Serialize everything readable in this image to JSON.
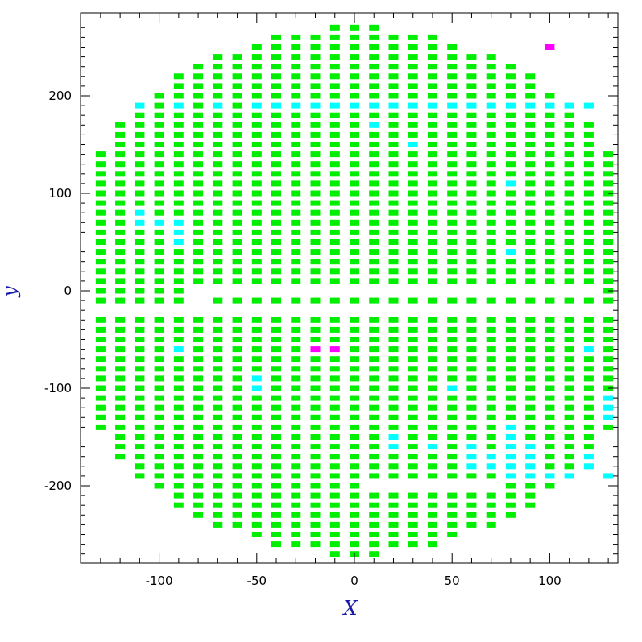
{
  "chart_data": {
    "type": "scatter",
    "title": "",
    "xlabel": "X",
    "ylabel": "y",
    "xlim": [
      -140,
      140
    ],
    "ylim": [
      -280,
      280
    ],
    "x_ticks": [
      -100,
      -50,
      0,
      50,
      100
    ],
    "y_ticks": [
      -200,
      -100,
      0,
      100,
      200
    ],
    "x_tick_labels": [
      "-100",
      "-50",
      "0",
      "50",
      "100"
    ],
    "y_tick_labels": [
      "-200",
      "-100",
      "0",
      "100",
      "200"
    ],
    "grid": false,
    "legend": "none",
    "marker": "rectangle",
    "cell_width": 6.2,
    "cell_height": 5.3,
    "grid_x": [
      -130,
      -120,
      -110,
      -100,
      -90,
      -80,
      -70,
      -60,
      -50,
      -40,
      -30,
      -20,
      -10,
      0,
      10,
      20,
      30,
      40,
      50,
      60,
      70,
      80,
      90,
      100,
      110,
      120,
      130
    ],
    "grid_y_top": [
      270,
      260,
      250,
      240,
      230,
      220,
      210,
      200,
      190,
      180,
      170,
      160,
      150,
      140,
      130,
      120,
      110,
      100,
      90,
      80,
      70,
      60,
      50,
      40,
      30,
      20,
      10,
      0,
      -10
    ],
    "grid_y_bottom": [
      -30,
      -40,
      -50,
      -60,
      -70,
      -80,
      -90,
      -100,
      -110,
      -120,
      -130,
      -140,
      -150,
      -160,
      -170,
      -180,
      -190,
      -200,
      -210,
      -220,
      -230,
      -240,
      -250,
      -260,
      -270
    ],
    "boundary_radius": 271,
    "x_half_width_limit": 131,
    "omitted_points": [
      [
        -80,
        -10
      ],
      [
        -80,
        0
      ],
      [
        -70,
        0
      ],
      [
        -60,
        0
      ],
      [
        -50,
        0
      ],
      [
        -40,
        0
      ],
      [
        -30,
        0
      ],
      [
        -20,
        0
      ],
      [
        -10,
        0
      ],
      [
        0,
        0
      ],
      [
        10,
        0
      ],
      [
        20,
        0
      ],
      [
        30,
        0
      ],
      [
        40,
        0
      ],
      [
        50,
        0
      ],
      [
        60,
        0
      ],
      [
        70,
        0
      ],
      [
        80,
        0
      ],
      [
        90,
        0
      ],
      [
        100,
        0
      ],
      [
        110,
        0
      ],
      [
        120,
        0
      ],
      [
        10,
        -200
      ],
      [
        20,
        -200
      ],
      [
        30,
        -200
      ],
      [
        40,
        -200
      ],
      [
        50,
        -200
      ],
      [
        60,
        -200
      ],
      [
        70,
        -200
      ]
    ],
    "series": [
      {
        "name": "green",
        "color": "#00ee00",
        "description_points": "all remaining grid cells"
      },
      {
        "name": "cyan",
        "color": "#00ffff",
        "points": [
          [
            -110,
            190
          ],
          [
            -90,
            190
          ],
          [
            -70,
            190
          ],
          [
            -50,
            190
          ],
          [
            -40,
            190
          ],
          [
            -30,
            190
          ],
          [
            -20,
            190
          ],
          [
            -10,
            190
          ],
          [
            0,
            190
          ],
          [
            10,
            190
          ],
          [
            20,
            190
          ],
          [
            30,
            190
          ],
          [
            40,
            190
          ],
          [
            50,
            190
          ],
          [
            60,
            190
          ],
          [
            70,
            190
          ],
          [
            80,
            190
          ],
          [
            90,
            190
          ],
          [
            100,
            190
          ],
          [
            110,
            190
          ],
          [
            120,
            190
          ],
          [
            10,
            170
          ],
          [
            30,
            150
          ],
          [
            80,
            110
          ],
          [
            -110,
            80
          ],
          [
            -110,
            70
          ],
          [
            -100,
            70
          ],
          [
            -90,
            70
          ],
          [
            -90,
            60
          ],
          [
            -90,
            50
          ],
          [
            80,
            40
          ],
          [
            -90,
            -60
          ],
          [
            120,
            -60
          ],
          [
            -50,
            -90
          ],
          [
            -50,
            -100
          ],
          [
            50,
            -100
          ],
          [
            130,
            -110
          ],
          [
            130,
            -120
          ],
          [
            130,
            -130
          ],
          [
            80,
            -140
          ],
          [
            20,
            -150
          ],
          [
            80,
            -150
          ],
          [
            20,
            -160
          ],
          [
            40,
            -160
          ],
          [
            60,
            -160
          ],
          [
            80,
            -160
          ],
          [
            90,
            -160
          ],
          [
            60,
            -170
          ],
          [
            70,
            -170
          ],
          [
            80,
            -170
          ],
          [
            90,
            -170
          ],
          [
            120,
            -170
          ],
          [
            60,
            -180
          ],
          [
            70,
            -180
          ],
          [
            80,
            -180
          ],
          [
            90,
            -180
          ],
          [
            120,
            -180
          ],
          [
            80,
            -190
          ],
          [
            90,
            -190
          ],
          [
            100,
            -190
          ],
          [
            110,
            -190
          ],
          [
            130,
            -190
          ]
        ]
      },
      {
        "name": "magenta",
        "color": "#ff00ff",
        "points": [
          [
            100,
            250
          ],
          [
            -20,
            -60
          ],
          [
            -10,
            -60
          ]
        ]
      }
    ]
  },
  "colors": {
    "axis_title": "#1a1aa8",
    "frame": "#000000",
    "background": "#ffffff"
  }
}
